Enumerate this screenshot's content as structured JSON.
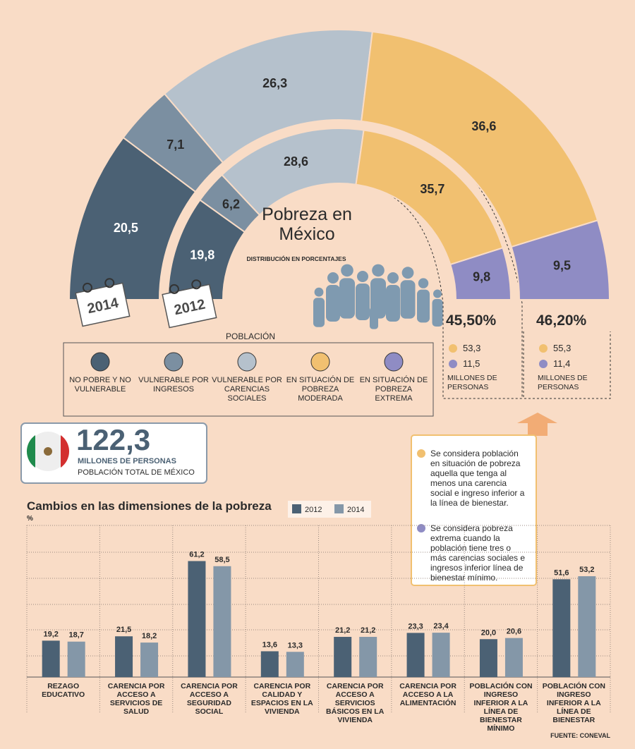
{
  "header": {
    "title": "Pobreza en México",
    "subtitle": "DISTRIBUCIÓN EN PORCENTAJES"
  },
  "legend": {
    "title": "POBLACIÓN",
    "items": [
      "NO POBRE Y NO VULNERABLE",
      "VULNERABLE POR INGRESOS",
      "VULNERABLE POR CARENCIAS SOCIALES",
      "EN SITUACIÓN DE POBREZA MODERADA",
      "EN SITUACIÓN DE POBREZA EXTREMA"
    ]
  },
  "summaries": [
    {
      "percent": "45,50%",
      "moderate": "53,3",
      "extreme": "11,5",
      "unit": "MILLONES DE PERSONAS"
    },
    {
      "percent": "46,20%",
      "moderate": "55,3",
      "extreme": "11,4",
      "unit": "MILLONES DE PERSONAS"
    }
  ],
  "total": {
    "value": "122,3",
    "unit": "MILLONES DE PERSONAS",
    "label": "POBLACIÓN TOTAL DE MÉXICO"
  },
  "notes": [
    "Se considera población en situación de pobreza aquella que tenga al menos una carencia social e ingreso inferior a la línea de bienestar.",
    "Se considera pobreza extrema cuando la población tiene tres o más carencias sociales e ingresos inferior línea de bienestar mínimo."
  ],
  "source": "FUENTE: CONEVAL",
  "chart_data": [
    {
      "type": "semicircle",
      "name": "2014",
      "values": [
        20.5,
        7.1,
        26.3,
        36.6,
        9.5
      ],
      "value_labels": [
        "20,5",
        "7,1",
        "26,3",
        "36,6",
        "9,5"
      ],
      "colors": [
        "#4b6174",
        "#7b8fa1",
        "#b5c1cc",
        "#f1c070",
        "#8f8cc4"
      ]
    },
    {
      "type": "semicircle",
      "name": "2012",
      "values": [
        19.8,
        6.2,
        28.6,
        35.7,
        9.8
      ],
      "value_labels": [
        "19,8",
        "6,2",
        "28,6",
        "35,7",
        "9,8"
      ],
      "colors": [
        "#4b6174",
        "#7b8fa1",
        "#b5c1cc",
        "#f1c070",
        "#8f8cc4"
      ]
    },
    {
      "type": "bar",
      "title": "Cambios en las dimensiones de la pobreza",
      "y_label": "%",
      "categories": [
        "REZAGO EDUCATIVO",
        "CARENCIA POR ACCESO A SERVICIOS DE SALUD",
        "CARENCIA POR ACCESO A SEGURIDAD SOCIAL",
        "CARENCIA POR CALIDAD Y ESPACIOS EN LA VIVIENDA",
        "CARENCIA POR ACCESO A SERVICIOS BÁSICOS EN LA VIVIENDA",
        "CARENCIA POR ACCESO A LA ALIMENTACIÓN",
        "POBLACIÓN CON INGRESO INFERIOR A LA LÍNEA DE BIENESTAR MÍNIMO",
        "POBLACIÓN CON INGRESO INFERIOR A LA LÍNEA DE BIENESTAR"
      ],
      "series": [
        {
          "name": "2012",
          "color": "#4b6174",
          "values": [
            19.2,
            21.5,
            61.2,
            13.6,
            21.2,
            23.3,
            20.0,
            51.6
          ],
          "value_labels": [
            "19,2",
            "21,5",
            "61,2",
            "13,6",
            "21,2",
            "23,3",
            "20,0",
            "51,6"
          ]
        },
        {
          "name": "2014",
          "color": "#8497a8",
          "values": [
            18.7,
            18.2,
            58.5,
            13.3,
            21.2,
            23.4,
            20.6,
            53.2
          ],
          "value_labels": [
            "18,7",
            "18,2",
            "58,5",
            "13,3",
            "21,2",
            "23,4",
            "20,6",
            "53,2"
          ]
        }
      ],
      "ylim": [
        0,
        80
      ]
    }
  ]
}
